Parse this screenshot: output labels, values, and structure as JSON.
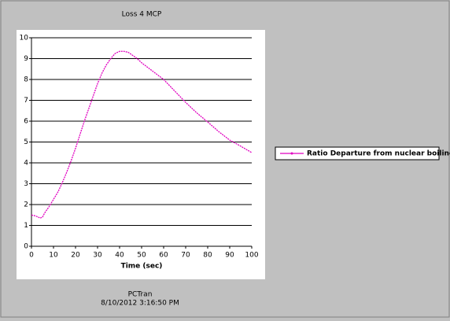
{
  "chart_data": {
    "type": "line",
    "title": "Loss 4 MCP",
    "x_label": "Time (sec)",
    "x": [
      0,
      2,
      4,
      5,
      6,
      8,
      10,
      12,
      14,
      16,
      18,
      20,
      22,
      24,
      26,
      28,
      30,
      32,
      34,
      36,
      38,
      40,
      42,
      44,
      46,
      48,
      50,
      55,
      60,
      65,
      70,
      75,
      80,
      85,
      90,
      95,
      100
    ],
    "series": [
      {
        "name": "Ratio Departure from nuclear boiling",
        "color": "#e000c0",
        "values": [
          1.5,
          1.45,
          1.35,
          1.4,
          1.6,
          1.9,
          2.25,
          2.6,
          3.05,
          3.55,
          4.1,
          4.7,
          5.35,
          6.0,
          6.6,
          7.2,
          7.8,
          8.3,
          8.7,
          9.0,
          9.25,
          9.35,
          9.35,
          9.3,
          9.15,
          9.0,
          8.8,
          8.4,
          8.0,
          7.45,
          6.9,
          6.4,
          5.96,
          5.5,
          5.09,
          4.8,
          4.49
        ]
      }
    ],
    "xlim": [
      0,
      100
    ],
    "xticks": [
      0,
      10,
      20,
      30,
      40,
      50,
      60,
      70,
      80,
      90,
      100
    ],
    "ylim": [
      0,
      10
    ],
    "yticks": [
      0,
      1,
      2,
      3,
      4,
      5,
      6,
      7,
      8,
      9,
      10
    ],
    "grid": true,
    "legend": "right"
  },
  "footer": [
    "PCTran",
    "8/10/2012 3:16:50 PM"
  ]
}
